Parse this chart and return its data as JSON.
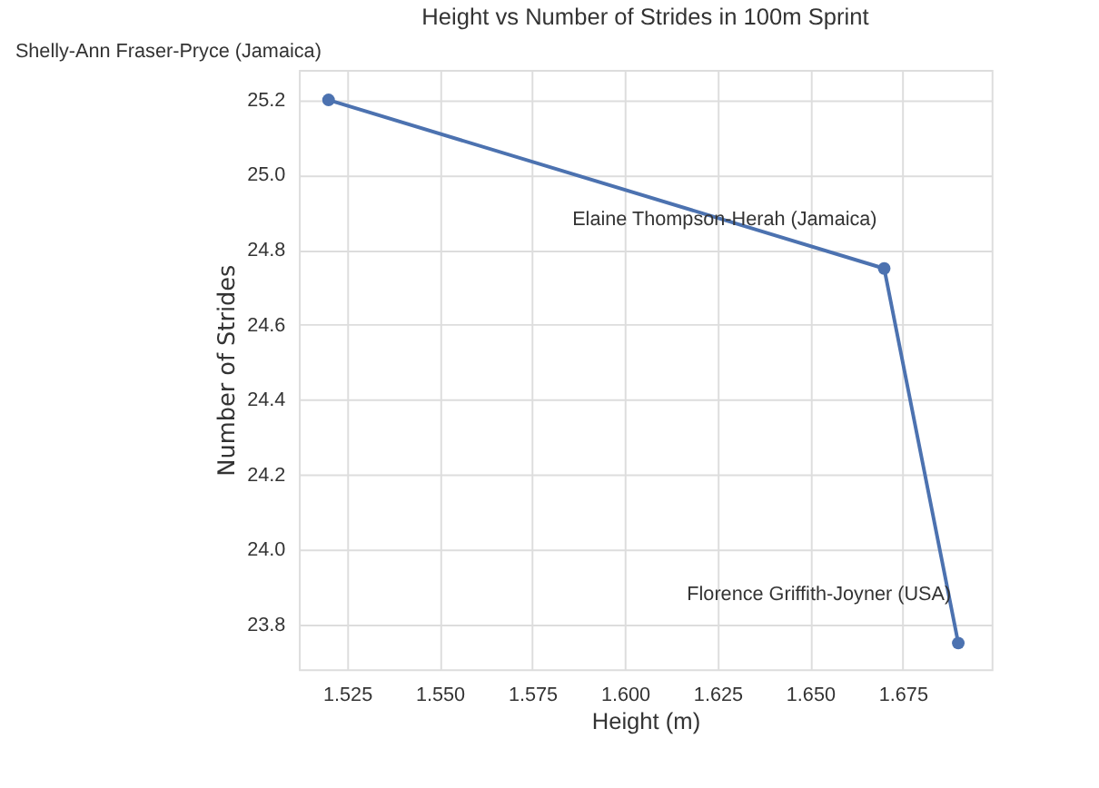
{
  "chart_data": {
    "type": "line",
    "title": "Height vs Number of Strides in 100m Sprint",
    "xlabel": "Height (m)",
    "ylabel": "Number of Strides",
    "x": [
      1.52,
      1.67,
      1.69
    ],
    "series": [
      {
        "color": "#4c72b0",
        "values": [
          25.2,
          24.75,
          23.75
        ]
      }
    ],
    "xlim": [
      1.512,
      1.699
    ],
    "xticks": [
      {
        "value": 1.525,
        "label": "1.525"
      },
      {
        "value": 1.55,
        "label": "1.550"
      },
      {
        "value": 1.575,
        "label": "1.575"
      },
      {
        "value": 1.6,
        "label": "1.600"
      },
      {
        "value": 1.625,
        "label": "1.625"
      },
      {
        "value": 1.65,
        "label": "1.650"
      },
      {
        "value": 1.675,
        "label": "1.675"
      }
    ],
    "ylim": [
      23.68,
      25.28
    ],
    "yticks": [
      {
        "value": 23.8,
        "label": "23.8"
      },
      {
        "value": 24.0,
        "label": "24.0"
      },
      {
        "value": 24.2,
        "label": "24.2"
      },
      {
        "value": 24.4,
        "label": "24.4"
      },
      {
        "value": 24.6,
        "label": "24.6"
      },
      {
        "value": 24.8,
        "label": "24.8"
      },
      {
        "value": 25.0,
        "label": "25.0"
      },
      {
        "value": 25.2,
        "label": "25.2"
      }
    ],
    "annotations": [
      {
        "text": "Shelly-Ann Fraser-Pryce (Jamaica)",
        "x": 1.52,
        "y": 25.2
      },
      {
        "text": "Elaine Thompson-Herah (Jamaica)",
        "x": 1.67,
        "y": 24.75
      },
      {
        "text": "Florence Griffith-Joyner (USA)",
        "x": 1.69,
        "y": 23.75
      }
    ],
    "grid": true,
    "marker": "circle",
    "line_style": "solid"
  }
}
